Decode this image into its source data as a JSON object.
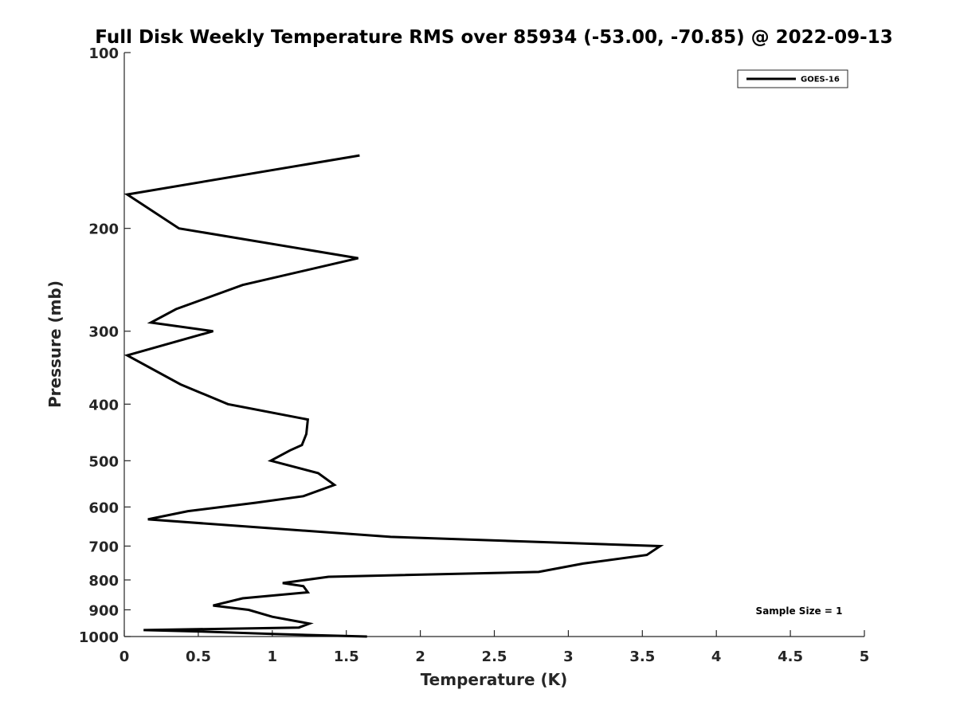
{
  "chart_data": {
    "type": "line",
    "title": "Full Disk Weekly Temperature RMS over 85934 (-53.00, -70.85) @ 2022-09-13",
    "xlabel": "Temperature (K)",
    "ylabel": "Pressure (mb)",
    "xlim": [
      0,
      5
    ],
    "ylim": [
      100,
      1000
    ],
    "y_scale": "log",
    "y_reversed": true,
    "x_ticks": [
      "0",
      "0.5",
      "1",
      "1.5",
      "2",
      "2.5",
      "3",
      "3.5",
      "4",
      "4.5",
      "5"
    ],
    "y_ticks": [
      "100",
      "200",
      "300",
      "400",
      "500",
      "600",
      "700",
      "800",
      "900",
      "1000"
    ],
    "grid": false,
    "legend_position": "top-right",
    "annotation": "Sample Size = 1",
    "series": [
      {
        "name": "GOES-16",
        "color": "#000000",
        "x": [
          1.59,
          0.02,
          0.37,
          1.58,
          0.8,
          0.35,
          0.18,
          0.6,
          0.02,
          0.38,
          0.7,
          1.24,
          1.23,
          1.2,
          1.12,
          0.99,
          1.31,
          1.42,
          1.21,
          0.89,
          0.43,
          0.16,
          0.9,
          1.8,
          3.62,
          3.53,
          3.1,
          2.8,
          1.38,
          1.07,
          1.21,
          1.24,
          0.8,
          0.6,
          0.84,
          1.0,
          1.25,
          1.18,
          0.13,
          0.5,
          1.0,
          1.64
        ],
        "y": [
          150,
          175,
          200,
          225,
          250,
          275,
          290,
          300,
          330,
          370,
          400,
          425,
          450,
          470,
          480,
          500,
          525,
          550,
          575,
          590,
          610,
          630,
          650,
          675,
          700,
          725,
          750,
          775,
          790,
          810,
          820,
          840,
          860,
          885,
          900,
          925,
          950,
          965,
          975,
          980,
          990,
          1000
        ]
      }
    ]
  }
}
